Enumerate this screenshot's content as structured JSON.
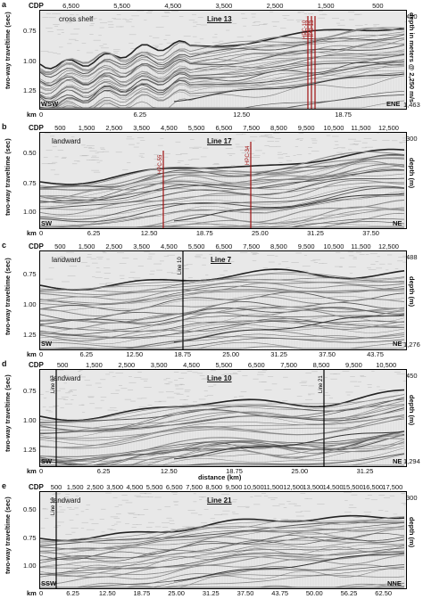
{
  "panels": [
    {
      "letter": "a",
      "line": "Line 13",
      "note": "cross shelf",
      "left_dir": "WSW",
      "right_dir": "ENE",
      "cdp_ticks": [
        "6,500",
        "5,500",
        "4,500",
        "3,500",
        "2,500",
        "1,500",
        "500"
      ],
      "km_ticks": [
        "6.25",
        "12.50",
        "18.75"
      ],
      "time_ticks": [
        "0.75",
        "1.00",
        "1.25"
      ],
      "right_top": "450",
      "right_bottom": "1,463",
      "right_axis": "depth in meters @ 2,250 m/s",
      "cores": [
        "HPC-10",
        "HPC-12",
        "HPC-13"
      ]
    },
    {
      "letter": "b",
      "line": "Line 17",
      "note": "landward",
      "left_dir": "SW",
      "right_dir": "NE",
      "cdp_ticks": [
        "500",
        "1,500",
        "2,500",
        "3,500",
        "4,500",
        "5,500",
        "6,500",
        "7,500",
        "8,500",
        "9,500",
        "10,500",
        "11,500",
        "12,500"
      ],
      "km_ticks": [
        "6.25",
        "12.50",
        "18.75",
        "25.00",
        "31.25",
        "37.50"
      ],
      "time_ticks": [
        "0.50",
        "0.75",
        "1.00"
      ],
      "right_top": "300",
      "right_bottom": "",
      "right_axis": "depth (m)",
      "cores": [
        "HPC-55",
        "HPC-34"
      ]
    },
    {
      "letter": "c",
      "line": "Line 7",
      "note": "landward",
      "left_dir": "SW",
      "right_dir": "NE",
      "cdp_ticks": [
        "500",
        "1,500",
        "2,500",
        "3,500",
        "4,500",
        "5,500",
        "6,500",
        "7,500",
        "8,500",
        "9,500",
        "10,500",
        "11,500",
        "12,500"
      ],
      "km_ticks": [
        "6.25",
        "12.50",
        "18.75",
        "25.00",
        "31.25",
        "37.50",
        "43.75"
      ],
      "time_ticks": [
        "0.75",
        "1.00",
        "1.25"
      ],
      "right_top": "488",
      "right_bottom": "1,276",
      "right_axis": "depth (m)",
      "marker": "Line 10"
    },
    {
      "letter": "d",
      "line": "Line 10",
      "note": "landward",
      "left_dir": "SW",
      "right_dir": "NE",
      "cdp_ticks": [
        "500",
        "1,500",
        "2,500",
        "3,500",
        "4,500",
        "5,500",
        "6,500",
        "7,500",
        "8,500",
        "9,500",
        "10,500"
      ],
      "km_ticks": [
        "6.25",
        "12.50",
        "18.75",
        "25.00",
        "31.25"
      ],
      "time_ticks": [
        "0.75",
        "1.00",
        "1.25"
      ],
      "right_top": "450",
      "right_bottom": "1,294",
      "right_axis": "depth (m)",
      "marker": "Line 07",
      "marker2": "Line 21"
    },
    {
      "letter": "e",
      "line": "Line 21",
      "note": "landward",
      "left_dir": "SSW",
      "right_dir": "NNE",
      "cdp_ticks": [
        "500",
        "1,500",
        "2,500",
        "3,500",
        "4,500",
        "5,500",
        "6,500",
        "7,500",
        "8,500",
        "9,500",
        "10,500",
        "11,500",
        "12,500",
        "13,500",
        "14,500",
        "15,500",
        "16,500",
        "17,500"
      ],
      "km_ticks": [
        "6.25",
        "12.50",
        "18.75",
        "25.00",
        "31.25",
        "37.50",
        "43.75",
        "50.00",
        "56.25",
        "62.50"
      ],
      "time_ticks": [
        "0.50",
        "0.75",
        "1.00"
      ],
      "right_top": "300",
      "right_bottom": "",
      "right_axis": "depth (m)",
      "marker": "Line 10"
    }
  ],
  "labels": {
    "cdp": "CDP",
    "km": "km",
    "yaxis": "two-way traveltime (sec)",
    "xaxis": "distance (km)",
    "km0": "0"
  }
}
